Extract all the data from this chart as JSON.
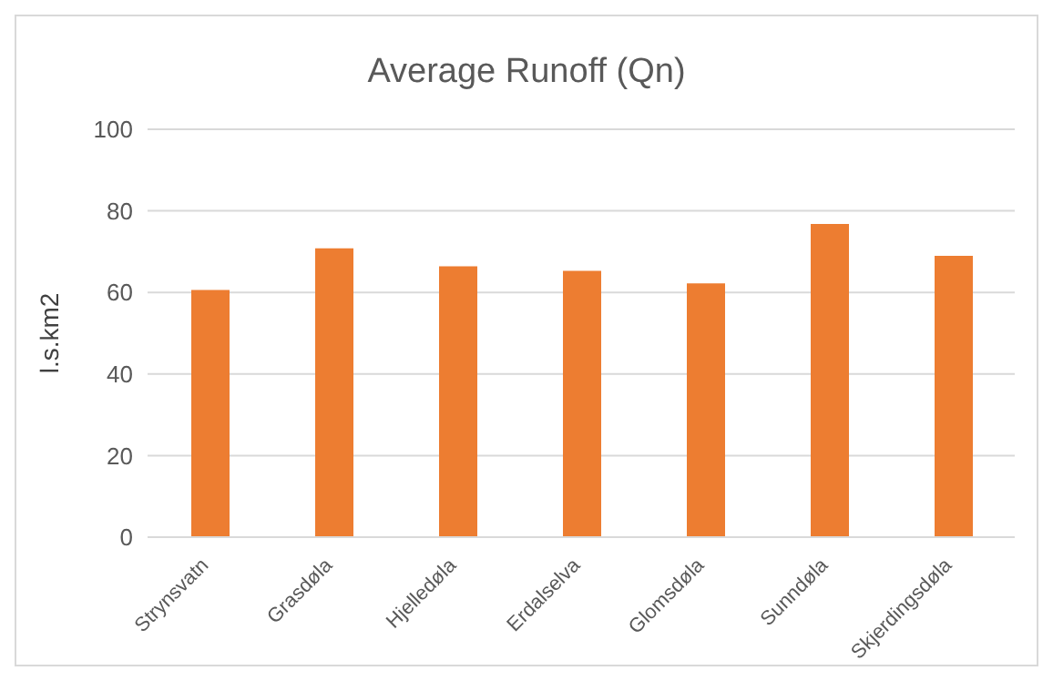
{
  "chart_data": {
    "type": "bar",
    "title": "Average Runoff (Qn)",
    "ylabel": "l.s.km2",
    "categories": [
      "Strynsvatn",
      "Grasdøla",
      "Hjelledøla",
      "Erdalselva",
      "Glomsdøla",
      "Sunndøla",
      "Skjerdingsdøla"
    ],
    "values": [
      60.6,
      70.8,
      66.4,
      65.3,
      62.2,
      76.8,
      69.0
    ],
    "color": "#ed7d31",
    "ylim": [
      0,
      100
    ],
    "yticks": [
      0,
      20,
      40,
      60,
      80,
      100
    ],
    "grid": "y"
  }
}
